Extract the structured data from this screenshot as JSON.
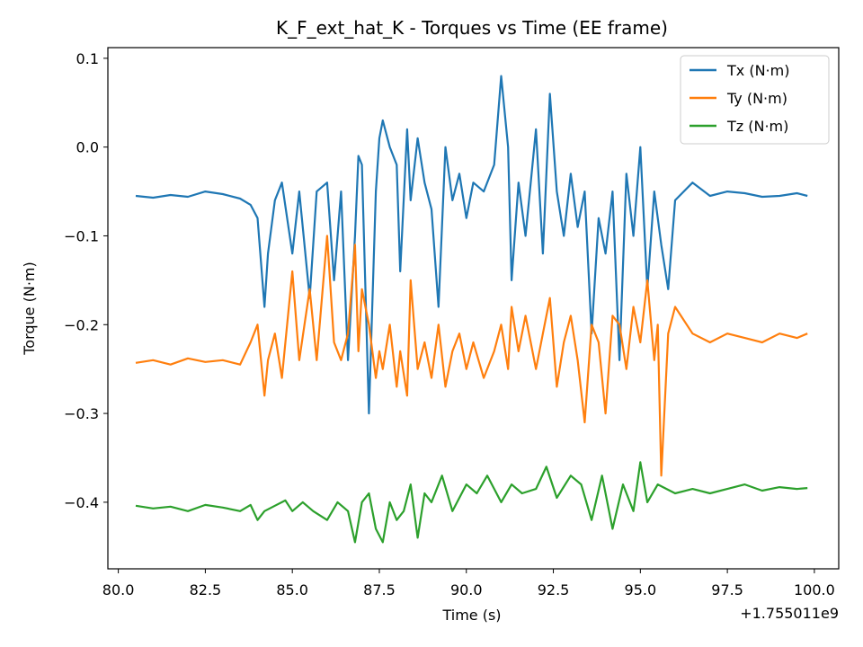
{
  "chart_data": {
    "type": "line",
    "title": "K_F_ext_hat_K - Torques vs Time (EE frame)",
    "xlabel": "Time (s)",
    "ylabel": "Torque (N·m)",
    "x_offset_label": "+1.755011e9",
    "xlim": [
      79.7,
      100.7
    ],
    "ylim": [
      -0.475,
      0.112
    ],
    "x_ticks": [
      80.0,
      82.5,
      85.0,
      87.5,
      90.0,
      92.5,
      95.0,
      97.5,
      100.0
    ],
    "x_tick_labels": [
      "80.0",
      "82.5",
      "85.0",
      "87.5",
      "90.0",
      "92.5",
      "95.0",
      "97.5",
      "100.0"
    ],
    "y_ticks": [
      0.1,
      0.0,
      -0.1,
      -0.2,
      -0.3,
      -0.4
    ],
    "y_tick_labels": [
      "0.1",
      "0.0",
      "−0.1",
      "−0.2",
      "−0.3",
      "−0.4"
    ],
    "legend_position": "top-right",
    "grid": false,
    "series": [
      {
        "name": "Tx (N·m)",
        "color": "#1f77b4",
        "x": [
          80.5,
          81.0,
          81.5,
          82.0,
          82.5,
          83.0,
          83.5,
          83.8,
          84.0,
          84.2,
          84.3,
          84.5,
          84.7,
          85.0,
          85.2,
          85.5,
          85.7,
          86.0,
          86.2,
          86.4,
          86.6,
          86.8,
          86.9,
          87.0,
          87.2,
          87.4,
          87.5,
          87.6,
          87.8,
          88.0,
          88.1,
          88.3,
          88.4,
          88.6,
          88.8,
          89.0,
          89.2,
          89.4,
          89.6,
          89.8,
          90.0,
          90.2,
          90.5,
          90.8,
          91.0,
          91.2,
          91.3,
          91.5,
          91.7,
          92.0,
          92.2,
          92.4,
          92.6,
          92.8,
          93.0,
          93.2,
          93.4,
          93.6,
          93.8,
          94.0,
          94.2,
          94.4,
          94.6,
          94.8,
          95.0,
          95.2,
          95.4,
          95.6,
          95.8,
          96.0,
          96.5,
          97.0,
          97.5,
          98.0,
          98.5,
          99.0,
          99.5,
          99.8
        ],
        "y": [
          -0.055,
          -0.057,
          -0.054,
          -0.056,
          -0.05,
          -0.053,
          -0.058,
          -0.065,
          -0.08,
          -0.18,
          -0.12,
          -0.06,
          -0.04,
          -0.12,
          -0.05,
          -0.17,
          -0.05,
          -0.04,
          -0.15,
          -0.05,
          -0.24,
          -0.1,
          -0.01,
          -0.02,
          -0.3,
          -0.05,
          0.01,
          0.03,
          0.0,
          -0.02,
          -0.14,
          0.02,
          -0.06,
          0.01,
          -0.04,
          -0.07,
          -0.18,
          0.0,
          -0.06,
          -0.03,
          -0.08,
          -0.04,
          -0.05,
          -0.02,
          0.08,
          0.0,
          -0.15,
          -0.04,
          -0.1,
          0.02,
          -0.12,
          0.06,
          -0.05,
          -0.1,
          -0.03,
          -0.09,
          -0.05,
          -0.21,
          -0.08,
          -0.12,
          -0.05,
          -0.24,
          -0.03,
          -0.1,
          0.0,
          -0.16,
          -0.05,
          -0.11,
          -0.16,
          -0.06,
          -0.04,
          -0.055,
          -0.05,
          -0.052,
          -0.056,
          -0.055,
          -0.052,
          -0.055
        ]
      },
      {
        "name": "Ty (N·m)",
        "color": "#ff7f0e",
        "x": [
          80.5,
          81.0,
          81.5,
          82.0,
          82.5,
          83.0,
          83.5,
          83.8,
          84.0,
          84.2,
          84.3,
          84.5,
          84.7,
          85.0,
          85.2,
          85.5,
          85.7,
          86.0,
          86.2,
          86.4,
          86.6,
          86.8,
          86.9,
          87.0,
          87.2,
          87.4,
          87.5,
          87.6,
          87.8,
          88.0,
          88.1,
          88.3,
          88.4,
          88.6,
          88.8,
          89.0,
          89.2,
          89.4,
          89.6,
          89.8,
          90.0,
          90.2,
          90.5,
          90.8,
          91.0,
          91.2,
          91.3,
          91.5,
          91.7,
          92.0,
          92.2,
          92.4,
          92.6,
          92.8,
          93.0,
          93.2,
          93.4,
          93.6,
          93.8,
          94.0,
          94.2,
          94.4,
          94.6,
          94.8,
          95.0,
          95.2,
          95.4,
          95.5,
          95.6,
          95.8,
          96.0,
          96.5,
          97.0,
          97.5,
          98.0,
          98.5,
          99.0,
          99.5,
          99.8
        ],
        "y": [
          -0.243,
          -0.24,
          -0.245,
          -0.238,
          -0.242,
          -0.24,
          -0.245,
          -0.22,
          -0.2,
          -0.28,
          -0.24,
          -0.21,
          -0.26,
          -0.14,
          -0.24,
          -0.16,
          -0.24,
          -0.1,
          -0.22,
          -0.24,
          -0.21,
          -0.11,
          -0.23,
          -0.16,
          -0.2,
          -0.26,
          -0.23,
          -0.25,
          -0.2,
          -0.27,
          -0.23,
          -0.28,
          -0.15,
          -0.25,
          -0.22,
          -0.26,
          -0.2,
          -0.27,
          -0.23,
          -0.21,
          -0.25,
          -0.22,
          -0.26,
          -0.23,
          -0.2,
          -0.25,
          -0.18,
          -0.23,
          -0.19,
          -0.25,
          -0.21,
          -0.17,
          -0.27,
          -0.22,
          -0.19,
          -0.24,
          -0.31,
          -0.2,
          -0.22,
          -0.3,
          -0.19,
          -0.2,
          -0.25,
          -0.18,
          -0.22,
          -0.15,
          -0.24,
          -0.2,
          -0.37,
          -0.21,
          -0.18,
          -0.21,
          -0.22,
          -0.21,
          -0.215,
          -0.22,
          -0.21,
          -0.215,
          -0.21
        ]
      },
      {
        "name": "Tz (N·m)",
        "color": "#2ca02c",
        "x": [
          80.5,
          81.0,
          81.5,
          82.0,
          82.5,
          83.0,
          83.5,
          83.8,
          84.0,
          84.2,
          84.5,
          84.8,
          85.0,
          85.3,
          85.6,
          86.0,
          86.3,
          86.6,
          86.8,
          87.0,
          87.2,
          87.4,
          87.6,
          87.8,
          88.0,
          88.2,
          88.4,
          88.6,
          88.8,
          89.0,
          89.3,
          89.6,
          90.0,
          90.3,
          90.6,
          91.0,
          91.3,
          91.6,
          92.0,
          92.3,
          92.6,
          93.0,
          93.3,
          93.6,
          93.9,
          94.2,
          94.5,
          94.8,
          95.0,
          95.2,
          95.5,
          96.0,
          96.5,
          97.0,
          97.5,
          98.0,
          98.5,
          99.0,
          99.5,
          99.8
        ],
        "y": [
          -0.404,
          -0.407,
          -0.405,
          -0.41,
          -0.403,
          -0.406,
          -0.41,
          -0.403,
          -0.42,
          -0.41,
          -0.404,
          -0.398,
          -0.41,
          -0.4,
          -0.41,
          -0.42,
          -0.4,
          -0.41,
          -0.445,
          -0.4,
          -0.39,
          -0.43,
          -0.445,
          -0.4,
          -0.42,
          -0.41,
          -0.38,
          -0.44,
          -0.39,
          -0.4,
          -0.37,
          -0.41,
          -0.38,
          -0.39,
          -0.37,
          -0.4,
          -0.38,
          -0.39,
          -0.385,
          -0.36,
          -0.395,
          -0.37,
          -0.38,
          -0.42,
          -0.37,
          -0.43,
          -0.38,
          -0.41,
          -0.355,
          -0.4,
          -0.38,
          -0.39,
          -0.385,
          -0.39,
          -0.385,
          -0.38,
          -0.387,
          -0.383,
          -0.385,
          -0.384
        ]
      }
    ]
  }
}
